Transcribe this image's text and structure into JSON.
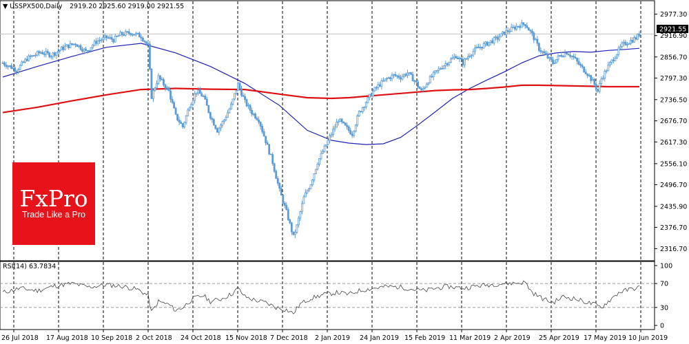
{
  "header": {
    "title": "USSPX500,Daily",
    "ohlc": "2919.20 2925.60 2919.00 2921.55"
  },
  "price_tag": "2921.55",
  "logo": {
    "main": "FxPro",
    "tagline": "Trade Like a Pro"
  },
  "colors": {
    "candle": "#5b9bd5",
    "ma_fast": "#1f1fb4",
    "ma_slow": "#dd1111",
    "rsi": "#444444",
    "logo_bg": "#e8131a"
  },
  "chart_data": [
    {
      "type": "candlestick",
      "title": "USSPX500,Daily",
      "symbol": "USSPX500",
      "timeframe": "Daily",
      "ylim": [
        2300,
        2990
      ],
      "y_ticks": [
        "2977.30",
        "2916.90",
        "2856.70",
        "2797.30",
        "2736.50",
        "2676.70",
        "2617.30",
        "2556.10",
        "2496.70",
        "2435.90",
        "2376.70",
        "2316.70"
      ],
      "x_ticks": [
        "26 Jul 2018",
        "17 Aug 2018",
        "10 Sep 2018",
        "2 Oct 2018",
        "24 Oct 2018",
        "15 Nov 2018",
        "7 Dec 2018",
        "2 Jan 2019",
        "24 Jan 2019",
        "15 Feb 2019",
        "11 Mar 2019",
        "2 Apr 2019",
        "25 Apr 2019",
        "17 May 2019",
        "10 Jun 2019"
      ],
      "close_path": [
        [
          0,
          2840
        ],
        [
          8,
          2820
        ],
        [
          14,
          2852
        ],
        [
          22,
          2870
        ],
        [
          28,
          2862
        ],
        [
          36,
          2885
        ],
        [
          42,
          2895
        ],
        [
          48,
          2872
        ],
        [
          54,
          2900
        ],
        [
          60,
          2912
        ],
        [
          64,
          2905
        ],
        [
          68,
          2920
        ],
        [
          74,
          2925
        ],
        [
          80,
          2915
        ],
        [
          84,
          2888
        ],
        [
          86,
          2745
        ],
        [
          90,
          2800
        ],
        [
          96,
          2760
        ],
        [
          100,
          2690
        ],
        [
          104,
          2660
        ],
        [
          108,
          2720
        ],
        [
          112,
          2760
        ],
        [
          116,
          2745
        ],
        [
          120,
          2690
        ],
        [
          124,
          2650
        ],
        [
          128,
          2680
        ],
        [
          132,
          2720
        ],
        [
          136,
          2780
        ],
        [
          140,
          2730
        ],
        [
          144,
          2700
        ],
        [
          148,
          2680
        ],
        [
          152,
          2620
        ],
        [
          156,
          2560
        ],
        [
          160,
          2480
        ],
        [
          164,
          2420
        ],
        [
          168,
          2350
        ],
        [
          170,
          2380
        ],
        [
          174,
          2460
        ],
        [
          178,
          2500
        ],
        [
          182,
          2560
        ],
        [
          186,
          2600
        ],
        [
          190,
          2640
        ],
        [
          194,
          2680
        ],
        [
          198,
          2660
        ],
        [
          202,
          2640
        ],
        [
          206,
          2700
        ],
        [
          210,
          2730
        ],
        [
          214,
          2760
        ],
        [
          218,
          2780
        ],
        [
          222,
          2795
        ],
        [
          226,
          2805
        ],
        [
          230,
          2800
        ],
        [
          234,
          2812
        ],
        [
          238,
          2790
        ],
        [
          242,
          2760
        ],
        [
          246,
          2790
        ],
        [
          250,
          2812
        ],
        [
          254,
          2830
        ],
        [
          258,
          2845
        ],
        [
          262,
          2860
        ],
        [
          266,
          2840
        ],
        [
          270,
          2865
        ],
        [
          274,
          2880
        ],
        [
          278,
          2890
        ],
        [
          282,
          2900
        ],
        [
          286,
          2910
        ],
        [
          290,
          2925
        ],
        [
          294,
          2935
        ],
        [
          298,
          2945
        ],
        [
          302,
          2950
        ],
        [
          306,
          2920
        ],
        [
          310,
          2880
        ],
        [
          314,
          2860
        ],
        [
          318,
          2840
        ],
        [
          322,
          2860
        ],
        [
          326,
          2870
        ],
        [
          330,
          2855
        ],
        [
          334,
          2830
        ],
        [
          338,
          2810
        ],
        [
          342,
          2780
        ],
        [
          344,
          2760
        ],
        [
          346,
          2795
        ],
        [
          350,
          2830
        ],
        [
          354,
          2860
        ],
        [
          358,
          2890
        ],
        [
          362,
          2900
        ],
        [
          366,
          2910
        ],
        [
          368,
          2921
        ]
      ],
      "series": [
        {
          "values": [
            [
              0,
              2800
            ],
            [
              20,
              2830
            ],
            [
              40,
              2858
            ],
            [
              60,
              2884
            ],
            [
              80,
              2895
            ],
            [
              100,
              2868
            ],
            [
              120,
              2830
            ],
            [
              140,
              2782
            ],
            [
              160,
              2720
            ],
            [
              176,
              2650
            ],
            [
              190,
              2622
            ],
            [
              200,
              2614
            ],
            [
              210,
              2610
            ],
            [
              220,
              2612
            ],
            [
              230,
              2630
            ],
            [
              240,
              2665
            ],
            [
              250,
              2702
            ],
            [
              260,
              2740
            ],
            [
              270,
              2768
            ],
            [
              280,
              2792
            ],
            [
              290,
              2815
            ],
            [
              300,
              2840
            ],
            [
              310,
              2860
            ],
            [
              320,
              2868
            ],
            [
              330,
              2872
            ],
            [
              340,
              2870
            ],
            [
              350,
              2875
            ],
            [
              360,
              2878
            ],
            [
              368,
              2881
            ]
          ]
        },
        {
          "values": [
            [
              0,
              2700
            ],
            [
              20,
              2715
            ],
            [
              40,
              2733
            ],
            [
              60,
              2750
            ],
            [
              80,
              2765
            ],
            [
              100,
              2768
            ],
            [
              120,
              2766
            ],
            [
              140,
              2765
            ],
            [
              160,
              2752
            ],
            [
              176,
              2742
            ],
            [
              190,
              2740
            ],
            [
              200,
              2742
            ],
            [
              210,
              2746
            ],
            [
              220,
              2750
            ],
            [
              230,
              2754
            ],
            [
              240,
              2758
            ],
            [
              250,
              2762
            ],
            [
              260,
              2764
            ],
            [
              270,
              2765
            ],
            [
              280,
              2768
            ],
            [
              290,
              2772
            ],
            [
              300,
              2777
            ],
            [
              310,
              2777
            ],
            [
              320,
              2776
            ],
            [
              330,
              2775
            ],
            [
              340,
              2774
            ],
            [
              350,
              2773
            ],
            [
              360,
              2773
            ],
            [
              368,
              2773
            ]
          ]
        }
      ]
    },
    {
      "type": "line",
      "title": "RSI(14) 63.7834",
      "indicator": "RSI(14)",
      "last_value": "63.7834",
      "ylim": [
        0,
        100
      ],
      "y_ticks": [
        "100",
        "70",
        "30",
        "0"
      ],
      "levels": [
        70,
        30
      ],
      "series": [
        {
          "values": [
            [
              0,
              55
            ],
            [
              10,
              62
            ],
            [
              20,
              58
            ],
            [
              30,
              66
            ],
            [
              40,
              70
            ],
            [
              50,
              64
            ],
            [
              60,
              68
            ],
            [
              70,
              65
            ],
            [
              78,
              60
            ],
            [
              84,
              50
            ],
            [
              86,
              22
            ],
            [
              90,
              40
            ],
            [
              96,
              35
            ],
            [
              100,
              25
            ],
            [
              104,
              30
            ],
            [
              110,
              45
            ],
            [
              116,
              50
            ],
            [
              120,
              40
            ],
            [
              126,
              44
            ],
            [
              132,
              52
            ],
            [
              136,
              62
            ],
            [
              140,
              48
            ],
            [
              146,
              42
            ],
            [
              152,
              38
            ],
            [
              158,
              30
            ],
            [
              164,
              26
            ],
            [
              168,
              20
            ],
            [
              172,
              36
            ],
            [
              178,
              45
            ],
            [
              186,
              52
            ],
            [
              194,
              55
            ],
            [
              200,
              52
            ],
            [
              206,
              58
            ],
            [
              214,
              62
            ],
            [
              222,
              65
            ],
            [
              230,
              64
            ],
            [
              238,
              60
            ],
            [
              244,
              58
            ],
            [
              250,
              62
            ],
            [
              258,
              65
            ],
            [
              266,
              62
            ],
            [
              274,
              66
            ],
            [
              282,
              68
            ],
            [
              290,
              70
            ],
            [
              298,
              71
            ],
            [
              302,
              72
            ],
            [
              306,
              55
            ],
            [
              312,
              45
            ],
            [
              318,
              38
            ],
            [
              324,
              48
            ],
            [
              330,
              45
            ],
            [
              336,
              40
            ],
            [
              342,
              35
            ],
            [
              346,
              30
            ],
            [
              350,
              40
            ],
            [
              356,
              55
            ],
            [
              362,
              60
            ],
            [
              368,
              63.78
            ]
          ]
        }
      ]
    }
  ]
}
